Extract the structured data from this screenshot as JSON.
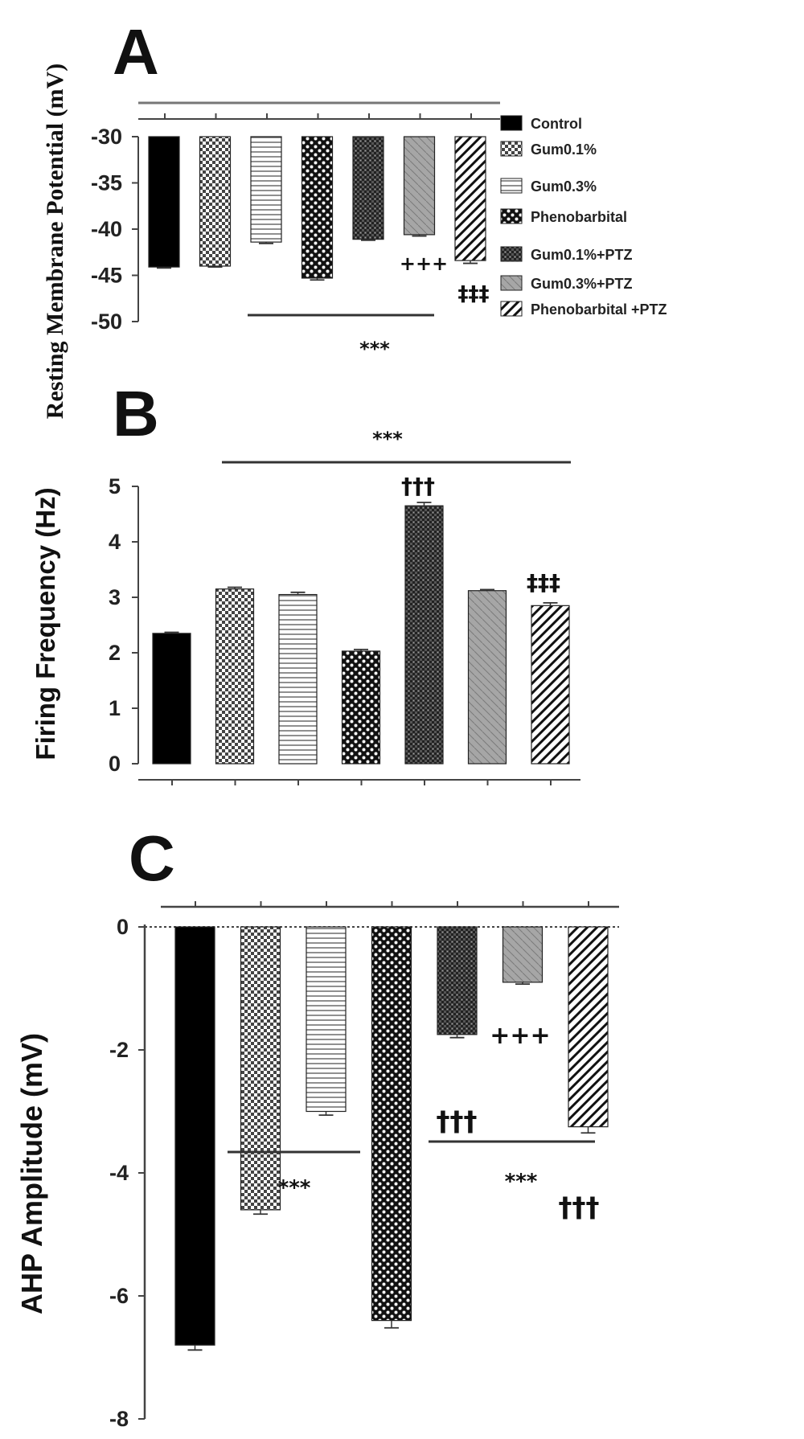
{
  "legend": {
    "items": [
      {
        "label": "Control",
        "pattern": "solid"
      },
      {
        "label": "Gum0.1%",
        "pattern": "check"
      },
      {
        "label": "Gum0.3%",
        "pattern": "hlines"
      },
      {
        "label": "Phenobarbital",
        "pattern": "dots"
      },
      {
        "label": "Gum0.1%+PTZ",
        "pattern": "dense"
      },
      {
        "label": "Gum0.3%+PTZ",
        "pattern": "fine-diag"
      },
      {
        "label": "Phenobarbital +PTZ",
        "pattern": "diag"
      }
    ]
  },
  "chart_data": [
    {
      "panel": "A",
      "type": "bar",
      "ylabel": "Resting Membrane Potential (mV)",
      "ylim": [
        -50,
        -30
      ],
      "baseline": -30,
      "yticks": [
        -30,
        -35,
        -40,
        -45,
        -50
      ],
      "ytick_labels": [
        "-30",
        "-35",
        "-40",
        "-45",
        "-50"
      ],
      "values": [
        -44.1,
        -44.0,
        -41.4,
        -45.3,
        -41.1,
        -40.6,
        -43.4
      ],
      "errors": [
        0.1,
        0.1,
        0.15,
        0.2,
        0.1,
        0.15,
        0.3
      ],
      "annotations": [
        {
          "text": "+++",
          "bar": 5
        },
        {
          "text": "‡‡‡",
          "bar": 6
        },
        {
          "text": "***",
          "bars": [
            2,
            5
          ]
        }
      ]
    },
    {
      "panel": "B",
      "type": "bar",
      "ylabel": "Firing Frequency (Hz)",
      "ylim": [
        0,
        5
      ],
      "baseline": 0,
      "yticks": [
        0,
        1,
        2,
        3,
        4,
        5
      ],
      "ytick_labels": [
        "0",
        "1",
        "2",
        "3",
        "4",
        "5"
      ],
      "values": [
        2.35,
        3.15,
        3.05,
        2.03,
        4.65,
        3.12,
        2.85
      ],
      "errors": [
        0.02,
        0.03,
        0.04,
        0.03,
        0.06,
        0.02,
        0.05
      ],
      "annotations": [
        {
          "text": "†††",
          "bar": 4
        },
        {
          "text": "‡‡‡",
          "bar": 6
        },
        {
          "text": "***",
          "bars": [
            1,
            6
          ]
        }
      ]
    },
    {
      "panel": "C",
      "type": "bar",
      "ylabel": "AHP Amplitude (mV)",
      "ylim": [
        -8,
        0
      ],
      "baseline": 0,
      "yticks": [
        0,
        -2,
        -4,
        -6,
        -8
      ],
      "ytick_labels": [
        "0",
        "-2",
        "-4",
        "-6",
        "-8"
      ],
      "values": [
        -6.8,
        -4.6,
        -3.0,
        -6.4,
        -1.75,
        -0.9,
        -3.25
      ],
      "errors": [
        0.08,
        0.07,
        0.06,
        0.12,
        0.05,
        0.03,
        0.1
      ],
      "annotations": [
        {
          "text": "†††",
          "bar": 4
        },
        {
          "text": "+++",
          "bar": 5
        },
        {
          "text": "†††",
          "bar": 6
        },
        {
          "text": "***",
          "bars": [
            1,
            2
          ]
        },
        {
          "text": "***",
          "bars": [
            4,
            6
          ]
        }
      ]
    }
  ]
}
